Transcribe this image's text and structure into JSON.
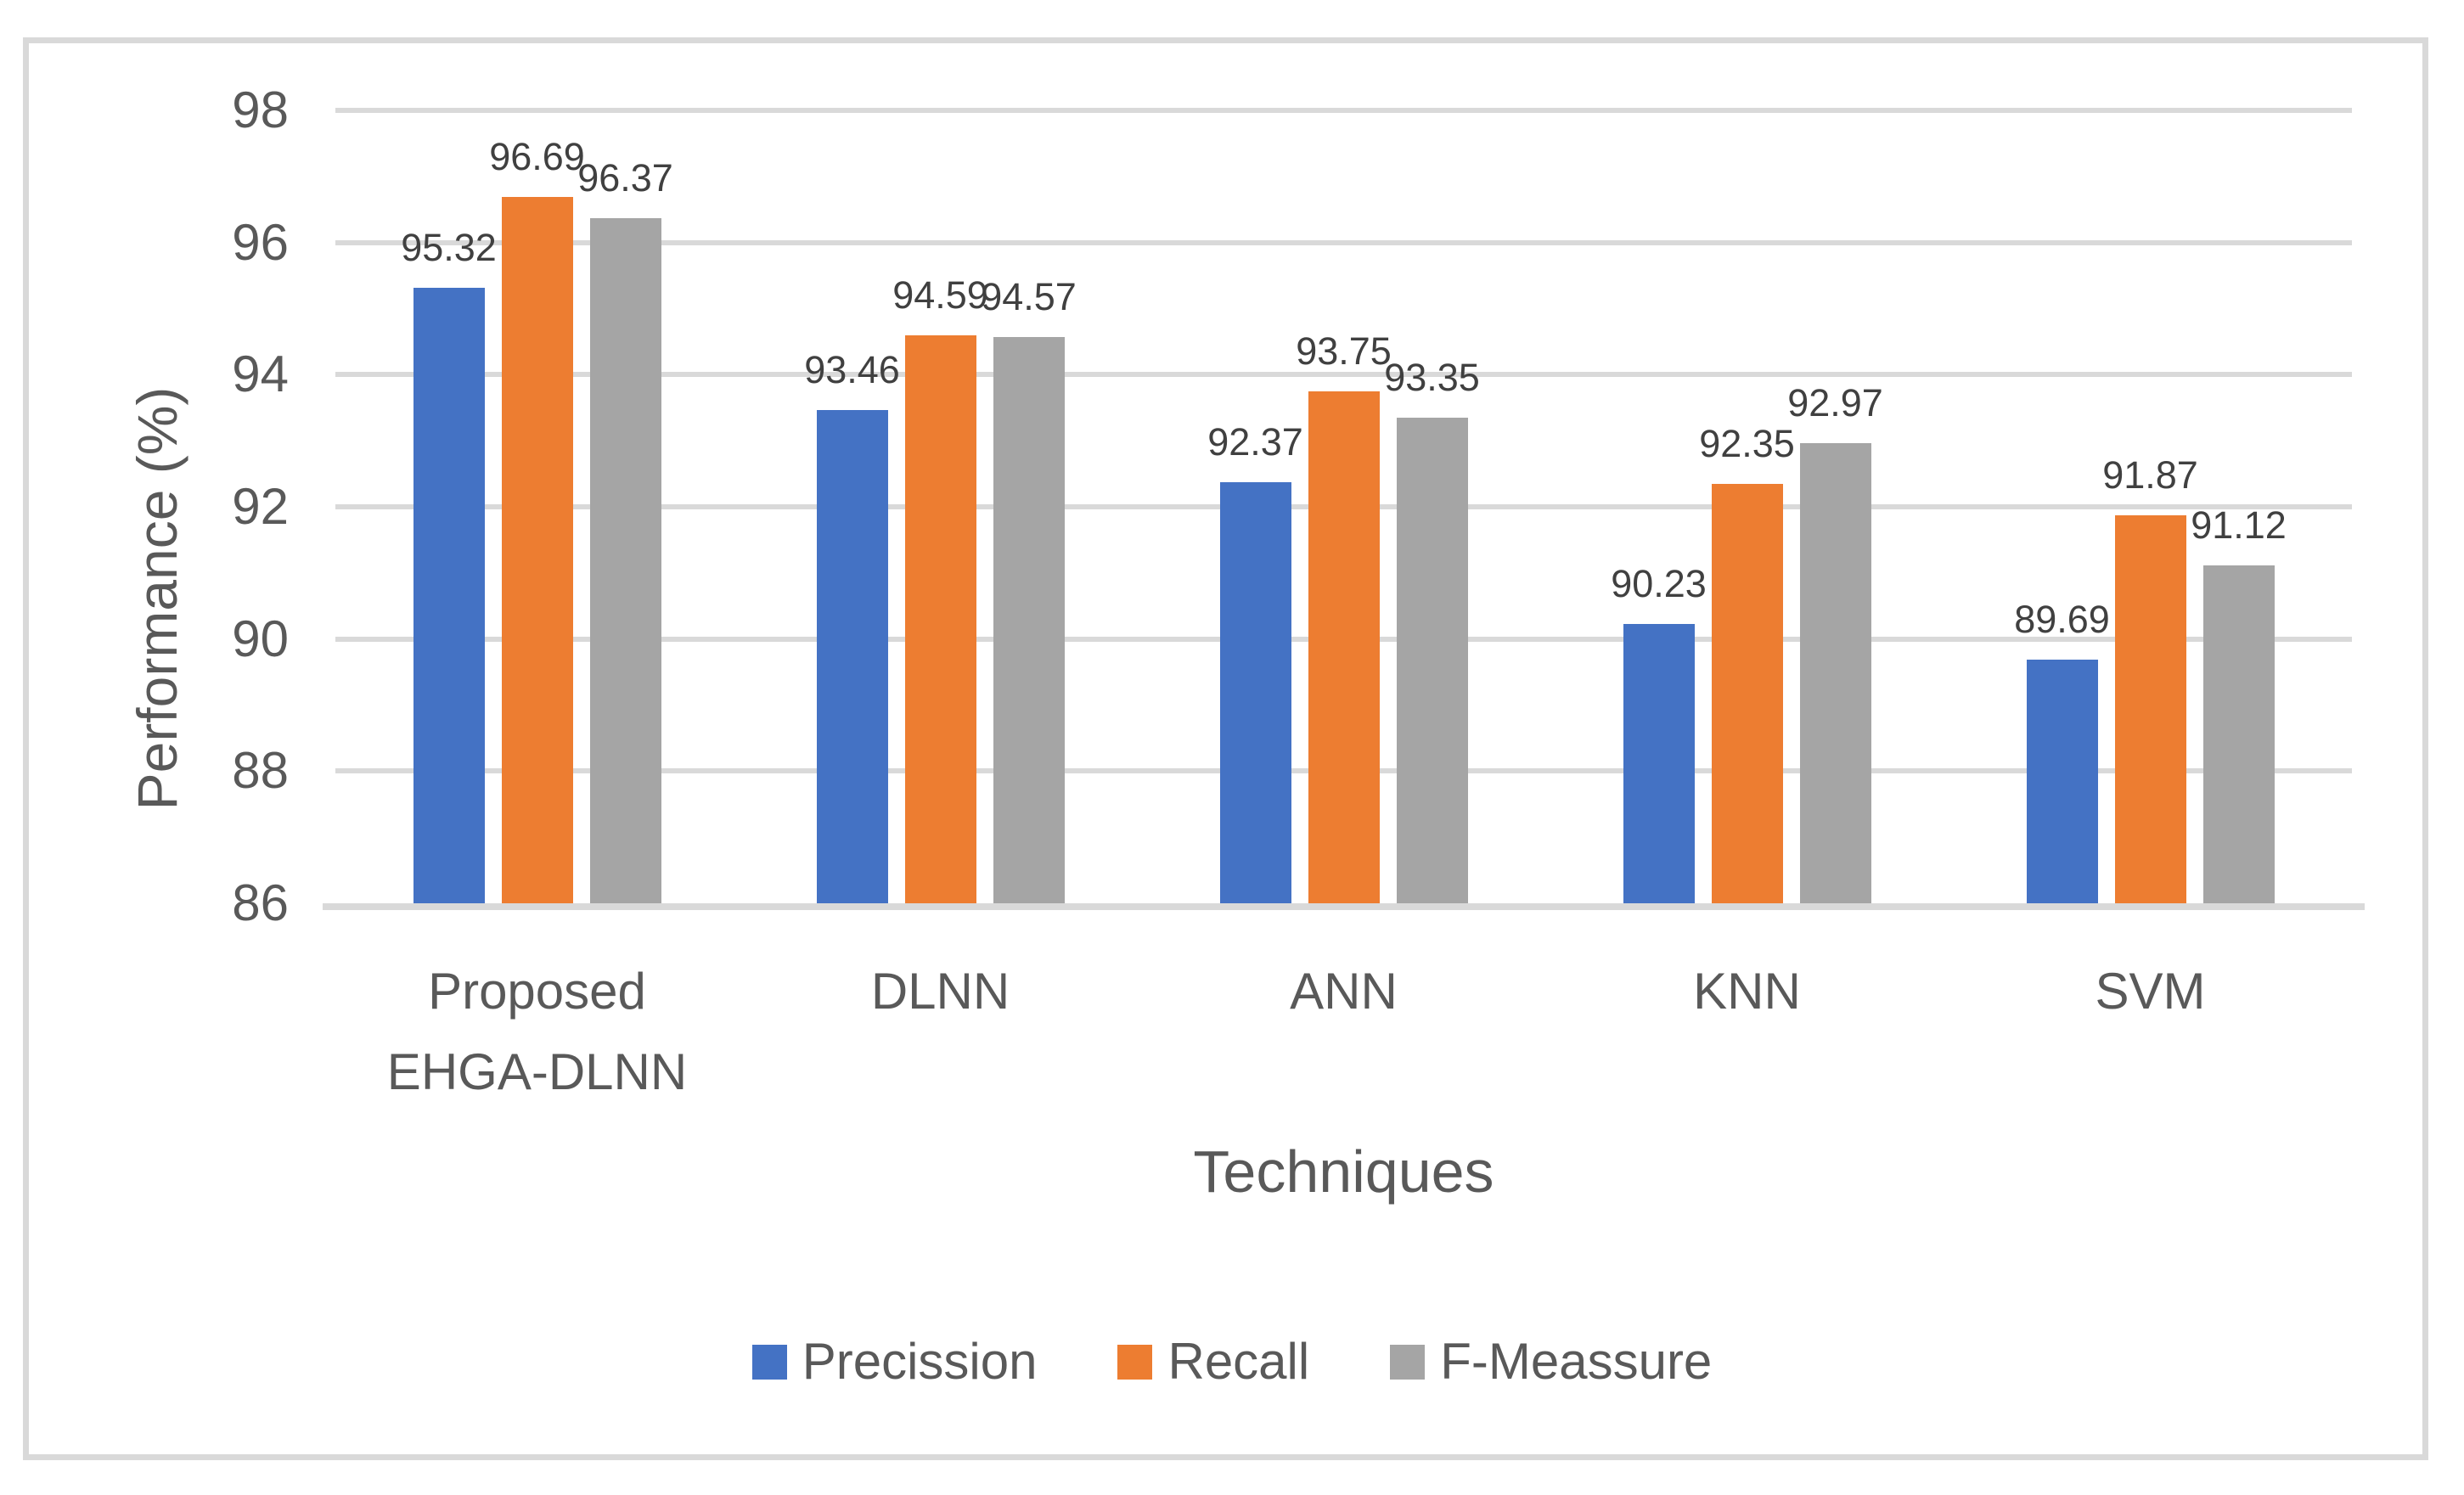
{
  "chart_data": {
    "type": "bar",
    "title": "",
    "xlabel": "Techniques",
    "ylabel": "Performance (%)",
    "categories": [
      "Proposed\nEHGA-DLNN",
      "DLNN",
      "ANN",
      "KNN",
      "SVM"
    ],
    "series": [
      {
        "name": "Precission",
        "color": "#4472C4",
        "values": [
          95.32,
          93.46,
          92.37,
          90.23,
          89.69
        ]
      },
      {
        "name": "Recall",
        "color": "#ED7D31",
        "values": [
          96.69,
          94.59,
          93.75,
          92.35,
          91.87
        ]
      },
      {
        "name": "F-Meassure",
        "color": "#A5A5A5",
        "values": [
          96.37,
          94.57,
          93.35,
          92.97,
          91.12
        ]
      }
    ],
    "ylim": [
      86,
      98
    ],
    "yticks": [
      86,
      88,
      90,
      92,
      94,
      96,
      98
    ],
    "grid": true,
    "data_labels": true,
    "legend_position": "bottom"
  },
  "colors": {
    "frame": "#D9D9D9",
    "gridline": "#D9D9D9",
    "axis_line": "#D9D9D9",
    "axis_text": "#595959",
    "data_label_text": "#404040",
    "background": "#FFFFFF"
  }
}
